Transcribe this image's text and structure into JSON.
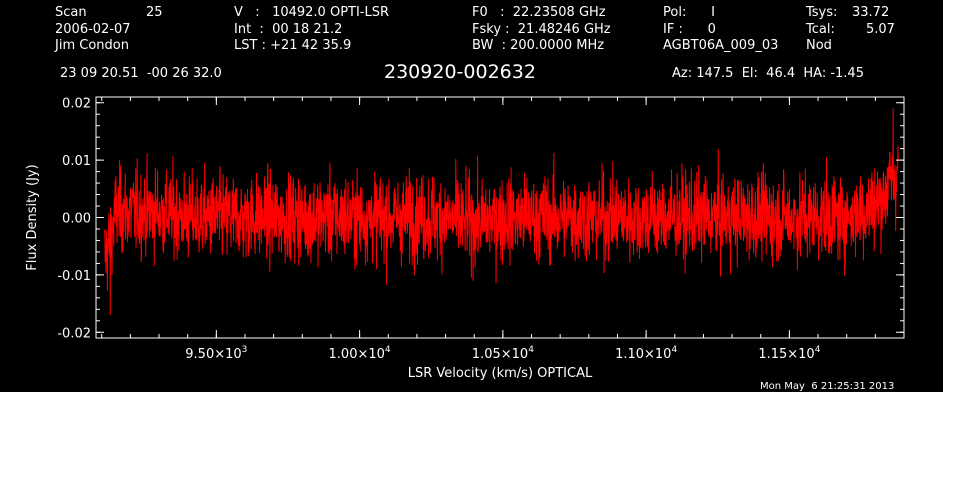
{
  "header": {
    "col1": [
      "Scan",
      "2006-02-07",
      "Jim Condon"
    ],
    "scan_number": "25",
    "col2": [
      "V   :   10492.0 OPTI-LSR",
      "Int  :  00 18 21.2",
      "LST : +21 42 35.9"
    ],
    "col3": [
      "F0   :  22.23508 GHz",
      "Fsky :  21.48246 GHz",
      "BW  : 200.0000 MHz"
    ],
    "col4": [
      "Pol:      I",
      "IF :      0",
      "AGBT06A_009_03"
    ],
    "col5": [
      "Tsys:",
      "Tcal:",
      "Nod"
    ],
    "col5_values": [
      "33.72",
      "5.07"
    ],
    "coords": "23 09 20.51  -00 26 32.0",
    "source": "230920-002632",
    "pointing": "Az: 147.5  El:  46.4  HA: -1.45",
    "timestamp": "Mon May  6 21:25:31 2013"
  },
  "colors": {
    "background": "#000000",
    "axes": "#ffffff",
    "series": "#ff0000"
  },
  "chart_data": {
    "type": "line",
    "xlabel": "LSR Velocity (km/s) OPTICAL",
    "ylabel": "Flux Density (Jy)",
    "xlim": [
      9080,
      11900
    ],
    "ylim": [
      -0.021,
      0.021
    ],
    "xticks": [
      {
        "value": 9500,
        "mant": "9.50",
        "exp": "3"
      },
      {
        "value": 10000,
        "mant": "1.00",
        "exp": "4"
      },
      {
        "value": 10500,
        "mant": "1.05",
        "exp": "4"
      },
      {
        "value": 11000,
        "mant": "1.10",
        "exp": "4"
      },
      {
        "value": 11500,
        "mant": "1.15",
        "exp": "4"
      }
    ],
    "yticks": [
      {
        "value": -0.02,
        "label": "-0.02"
      },
      {
        "value": -0.01,
        "label": "-0.01"
      },
      {
        "value": 0.0,
        "label": "0.00"
      },
      {
        "value": 0.01,
        "label": "0.01"
      },
      {
        "value": 0.02,
        "label": "0.02"
      }
    ],
    "series": [
      {
        "description": "noisy spectrum, baseline ~0 Jy, rms ~0.004 Jy",
        "x": [
          9110,
          9130,
          9150,
          9200,
          9300,
          9400,
          9500,
          9600,
          9700,
          9800,
          9900,
          10000,
          10100,
          10200,
          10300,
          10400,
          10500,
          10600,
          10700,
          10800,
          10900,
          11000,
          11100,
          11200,
          11300,
          11400,
          11500,
          11600,
          11700,
          11750,
          11800,
          11830,
          11850,
          11870,
          11880
        ],
        "y": [
          -0.007,
          -0.004,
          0.001,
          0.001,
          0.001,
          0.0,
          0.0,
          0.0,
          0.0,
          0.0,
          0.0,
          0.0,
          0.0,
          0.0,
          0.0,
          -0.001,
          0.0,
          0.0,
          0.0,
          0.0,
          0.0,
          0.0,
          0.0,
          0.0,
          0.0,
          0.0,
          0.0,
          0.0,
          0.0,
          0.001,
          0.002,
          0.004,
          0.006,
          0.007,
          0.009
        ]
      }
    ]
  }
}
